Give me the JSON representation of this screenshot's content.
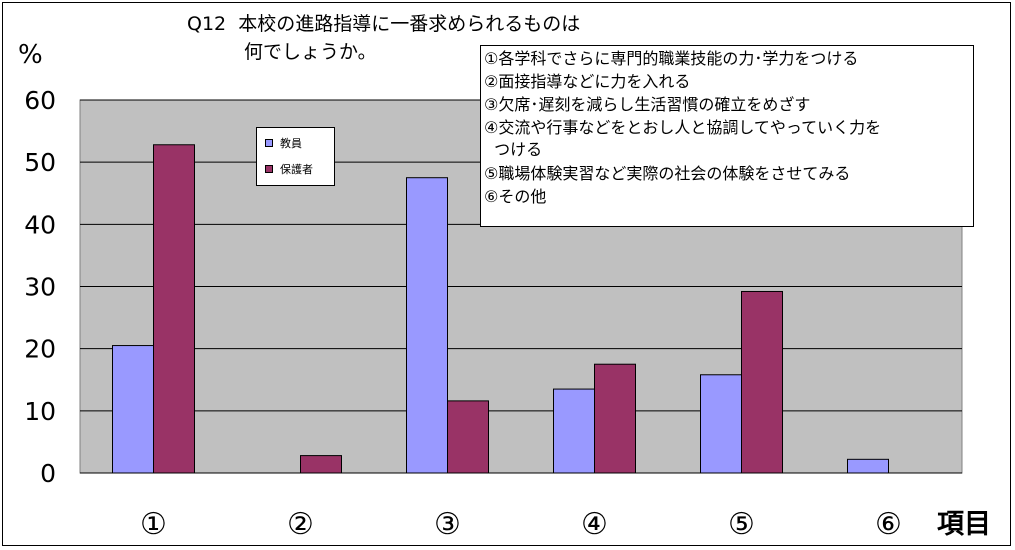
{
  "title": "Q12  本校の進路指導に一番求められるものは\n　　　何でしょうか。",
  "chart_data": {
    "type": "bar",
    "title": "Q12  本校の進路指導に一番求められるものは 何でしょうか。",
    "ylabel": "%",
    "xlabel": "項目",
    "ylim": [
      0,
      60
    ],
    "yticks": [
      "0",
      "10",
      "20",
      "30",
      "40",
      "50",
      "60"
    ],
    "categories": [
      "①",
      "②",
      "③",
      "④",
      "⑤",
      "⑥"
    ],
    "series": [
      {
        "name": "教員",
        "color": "#9999ff",
        "values": [
          20.5,
          0,
          47.5,
          13.5,
          15.8,
          2.2
        ]
      },
      {
        "name": "保護者",
        "color": "#993366",
        "values": [
          52.8,
          2.8,
          11.6,
          17.5,
          29.2,
          0
        ]
      }
    ],
    "grid": true,
    "legend_position": "top-left",
    "plot_background": "#c0c0c0"
  },
  "notes": [
    "①各学科でさらに専門的職業技能の力･学力をつける",
    "②面接指導などに力を入れる",
    "③欠席･遅刻を減らし生活習慣の確立をめざす",
    "④交流や行事などをとおし人と協調してやっていく力を\n  つける",
    "⑤職場体験実習など実際の社会の体験をさせてみる",
    "⑥その他"
  ]
}
